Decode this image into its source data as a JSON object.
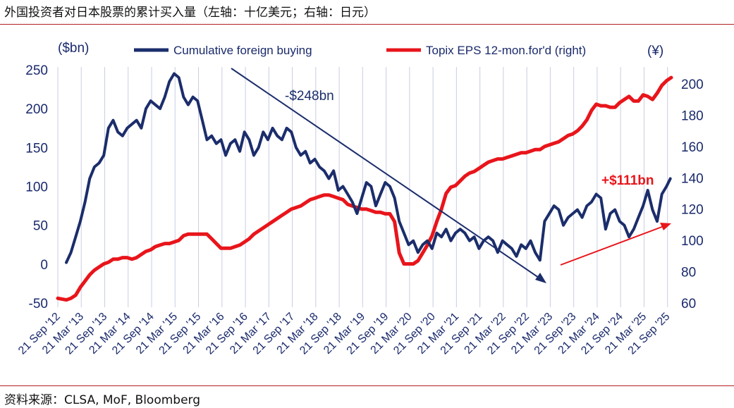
{
  "header": {
    "title": "外国投资者对日本股票的累计买入量（左轴：十亿美元；右轴：日元）"
  },
  "footer": {
    "source": "资料来源：CLSA, MoF, Bloomberg"
  },
  "chart_data": {
    "type": "line",
    "title": "外国投资者对日本股票的累计买入量（左轴：十亿美元；右轴：日元）",
    "left_axis": {
      "label": "($bn)",
      "range": [
        -50,
        250
      ],
      "ticks": [
        -50,
        0,
        50,
        100,
        150,
        200,
        250
      ]
    },
    "right_axis": {
      "label": "(¥)",
      "range": [
        60,
        210
      ],
      "ticks": [
        60,
        80,
        100,
        120,
        140,
        160,
        180,
        200
      ]
    },
    "x_range": [
      2012.72,
      2025.8
    ],
    "x_tick_labels": [
      "21 Sep '12",
      "21 Mar '13",
      "21 Sep '13",
      "21 Mar '14",
      "21 Sep '14",
      "21 Mar '15",
      "21 Sep '15",
      "21 Mar '16",
      "21 Sep '16",
      "21 Mar '17",
      "21 Sep '17",
      "21 Mar '18",
      "21 Sep '18",
      "21 Mar '19",
      "21 Sep '19",
      "21 Mar '20",
      "21 Sep '20",
      "21 Mar '21",
      "21 Sep '21",
      "21 Mar '22",
      "21 Sep '22",
      "21 Mar '23",
      "21 Sep '23",
      "21 Mar '24",
      "21 Sep '24",
      "21 Mar '25",
      "21 Sep '25"
    ],
    "legend": [
      {
        "name": "Cumulative foreign buying",
        "color": "#1b2d6b"
      },
      {
        "name": "Topix EPS 12-mon.for'd (right)",
        "color": "#e8151b"
      }
    ],
    "series": [
      {
        "name": "Cumulative foreign buying",
        "axis": "left",
        "color": "#1b2d6b",
        "x": [
          2012.9,
          2013.0,
          2013.1,
          2013.2,
          2013.3,
          2013.4,
          2013.5,
          2013.6,
          2013.7,
          2013.8,
          2013.9,
          2014.0,
          2014.1,
          2014.2,
          2014.3,
          2014.4,
          2014.5,
          2014.6,
          2014.7,
          2014.8,
          2014.9,
          2015.0,
          2015.1,
          2015.2,
          2015.3,
          2015.4,
          2015.5,
          2015.6,
          2015.7,
          2015.8,
          2015.9,
          2016.0,
          2016.1,
          2016.2,
          2016.3,
          2016.4,
          2016.5,
          2016.6,
          2016.7,
          2016.8,
          2016.9,
          2017.0,
          2017.1,
          2017.2,
          2017.3,
          2017.4,
          2017.5,
          2017.6,
          2017.7,
          2017.8,
          2017.9,
          2018.0,
          2018.1,
          2018.2,
          2018.3,
          2018.4,
          2018.5,
          2018.6,
          2018.7,
          2018.8,
          2018.9,
          2019.0,
          2019.1,
          2019.2,
          2019.3,
          2019.4,
          2019.5,
          2019.6,
          2019.7,
          2019.8,
          2019.9,
          2020.0,
          2020.1,
          2020.2,
          2020.3,
          2020.4,
          2020.5,
          2020.6,
          2020.7,
          2020.8,
          2020.9,
          2021.0,
          2021.1,
          2021.2,
          2021.3,
          2021.4,
          2021.5,
          2021.6,
          2021.7,
          2021.8,
          2021.9,
          2022.0,
          2022.1,
          2022.2,
          2022.3,
          2022.4,
          2022.5,
          2022.6,
          2022.7,
          2022.8,
          2022.9,
          2023.0,
          2023.1,
          2023.2,
          2023.3,
          2023.4,
          2023.5,
          2023.6,
          2023.7,
          2023.8,
          2023.9,
          2024.0,
          2024.1,
          2024.2,
          2024.3,
          2024.4,
          2024.5,
          2024.6,
          2024.7,
          2024.8,
          2024.9,
          2025.0,
          2025.1,
          2025.2,
          2025.3,
          2025.4,
          2025.5,
          2025.6,
          2025.7,
          2025.78
        ],
        "values": [
          2,
          15,
          35,
          55,
          80,
          110,
          125,
          130,
          140,
          175,
          185,
          170,
          165,
          175,
          180,
          185,
          175,
          200,
          210,
          205,
          200,
          215,
          235,
          245,
          240,
          215,
          205,
          215,
          210,
          185,
          160,
          165,
          155,
          160,
          140,
          155,
          160,
          145,
          170,
          160,
          140,
          150,
          170,
          160,
          175,
          165,
          160,
          175,
          170,
          150,
          140,
          145,
          130,
          135,
          125,
          120,
          110,
          120,
          95,
          100,
          90,
          80,
          65,
          85,
          105,
          100,
          75,
          90,
          105,
          100,
          85,
          55,
          40,
          25,
          30,
          15,
          25,
          30,
          20,
          40,
          35,
          45,
          30,
          40,
          45,
          40,
          30,
          35,
          20,
          30,
          35,
          30,
          15,
          30,
          25,
          20,
          10,
          25,
          20,
          30,
          15,
          5,
          55,
          65,
          75,
          70,
          50,
          60,
          65,
          70,
          60,
          75,
          80,
          90,
          85,
          45,
          65,
          70,
          55,
          50,
          35,
          45,
          60,
          75,
          95,
          70,
          55,
          90,
          100,
          110
        ]
      },
      {
        "name": "Topix EPS 12-mon.for'd (right)",
        "axis": "right",
        "color": "#e8151b",
        "x": [
          2012.72,
          2012.9,
          2013.0,
          2013.1,
          2013.2,
          2013.3,
          2013.4,
          2013.5,
          2013.6,
          2013.7,
          2013.8,
          2013.9,
          2014.0,
          2014.1,
          2014.2,
          2014.3,
          2014.4,
          2014.5,
          2014.6,
          2014.7,
          2014.8,
          2014.9,
          2015.0,
          2015.1,
          2015.2,
          2015.3,
          2015.4,
          2015.5,
          2015.6,
          2015.7,
          2015.8,
          2015.9,
          2016.0,
          2016.1,
          2016.2,
          2016.3,
          2016.4,
          2016.5,
          2016.6,
          2016.7,
          2016.8,
          2016.9,
          2017.0,
          2017.1,
          2017.2,
          2017.3,
          2017.4,
          2017.5,
          2017.6,
          2017.7,
          2017.8,
          2017.9,
          2018.0,
          2018.1,
          2018.2,
          2018.3,
          2018.4,
          2018.5,
          2018.6,
          2018.7,
          2018.8,
          2018.9,
          2019.0,
          2019.1,
          2019.2,
          2019.3,
          2019.4,
          2019.5,
          2019.6,
          2019.7,
          2019.8,
          2019.9,
          2020.0,
          2020.1,
          2020.2,
          2020.3,
          2020.4,
          2020.5,
          2020.6,
          2020.7,
          2020.8,
          2020.9,
          2021.0,
          2021.1,
          2021.2,
          2021.3,
          2021.4,
          2021.5,
          2021.6,
          2021.7,
          2021.8,
          2021.9,
          2022.0,
          2022.1,
          2022.2,
          2022.3,
          2022.4,
          2022.5,
          2022.6,
          2022.7,
          2022.8,
          2022.9,
          2023.0,
          2023.1,
          2023.2,
          2023.3,
          2023.4,
          2023.5,
          2023.6,
          2023.7,
          2023.8,
          2023.9,
          2024.0,
          2024.1,
          2024.2,
          2024.3,
          2024.4,
          2024.5,
          2024.6,
          2024.7,
          2024.8,
          2024.9,
          2025.0,
          2025.1,
          2025.2,
          2025.3,
          2025.4,
          2025.5,
          2025.6,
          2025.7,
          2025.8
        ],
        "values": [
          63,
          62,
          63,
          65,
          70,
          74,
          78,
          81,
          83,
          85,
          86,
          88,
          88,
          89,
          89,
          88,
          89,
          91,
          93,
          94,
          96,
          97,
          98,
          98,
          99,
          100,
          103,
          104,
          104,
          104,
          104,
          104,
          101,
          98,
          95,
          95,
          95,
          96,
          97,
          99,
          101,
          104,
          106,
          108,
          110,
          112,
          114,
          116,
          118,
          120,
          121,
          122,
          124,
          126,
          127,
          128,
          129,
          129,
          128,
          127,
          126,
          123,
          122,
          121,
          120,
          120,
          119,
          118,
          118,
          117,
          117,
          112,
          92,
          85,
          85,
          85,
          87,
          92,
          97,
          103,
          112,
          120,
          130,
          134,
          135,
          138,
          141,
          143,
          144,
          146,
          148,
          150,
          151,
          152,
          152,
          153,
          154,
          155,
          156,
          156,
          157,
          158,
          158,
          160,
          161,
          162,
          163,
          165,
          167,
          168,
          170,
          173,
          177,
          183,
          187,
          186,
          186,
          185,
          185,
          188,
          190,
          192,
          189,
          189,
          193,
          192,
          190,
          194,
          199,
          202,
          204
        ]
      }
    ],
    "annotations": [
      {
        "text": "-$248bn",
        "color": "#1b2d6b"
      },
      {
        "text": "+$111bn",
        "color": "#e8151b"
      }
    ]
  }
}
